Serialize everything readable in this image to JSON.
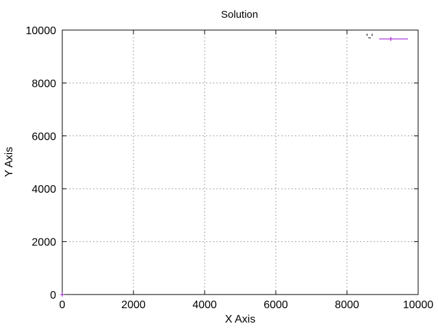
{
  "chart_data": {
    "type": "line",
    "title": "Solution",
    "xlabel": "X Axis",
    "ylabel": "Y Axis",
    "xlim": [
      0,
      10000
    ],
    "ylim": [
      0,
      10000
    ],
    "xticks": [
      0,
      2000,
      4000,
      6000,
      8000,
      10000
    ],
    "yticks": [
      0,
      2000,
      4000,
      6000,
      8000,
      10000
    ],
    "grid": true,
    "legend_position": "top-right",
    "series": [
      {
        "name": "'-'",
        "color": "#9400d3",
        "marker": "plus",
        "x": [
          0
        ],
        "y": [
          0
        ]
      }
    ]
  }
}
